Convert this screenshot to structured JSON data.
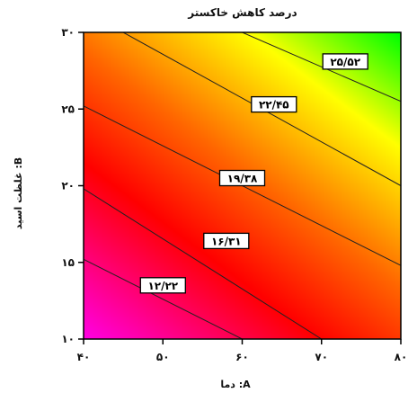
{
  "chart_data": {
    "type": "contour",
    "title": "درصد کاهش خاکستر",
    "xlabel": "A: دما",
    "ylabel": "B: غلظت اسید",
    "xlim": [
      40,
      80
    ],
    "ylim": [
      10,
      30
    ],
    "x_ticks": [
      40,
      50,
      60,
      70,
      80
    ],
    "x_tick_labels": [
      "۴۰",
      "۵۰",
      "۶۰",
      "۷۰",
      "۸۰"
    ],
    "y_ticks": [
      10,
      15,
      20,
      25,
      30
    ],
    "y_tick_labels": [
      "۱۰",
      "۱۵",
      "۲۰",
      "۲۵",
      "۳۰"
    ],
    "colormap": [
      "#ff00ff",
      "#ff0000",
      "#ffff00",
      "#00ff00"
    ],
    "grid": false,
    "contour_levels": [
      {
        "value": 12.22,
        "label": "۱۲/۲۲"
      },
      {
        "value": 16.31,
        "label": "۱۶/۳۱"
      },
      {
        "value": 19.38,
        "label": "۱۹/۳۸"
      },
      {
        "value": 22.45,
        "label": "۲۲/۴۵"
      },
      {
        "value": 25.52,
        "label": "۲۵/۵۲"
      }
    ],
    "contour_lines": [
      {
        "level": 12.22,
        "points": [
          [
            40,
            15.2
          ],
          [
            60,
            10
          ]
        ]
      },
      {
        "level": 16.31,
        "points": [
          [
            40,
            19.8
          ],
          [
            70,
            10
          ]
        ]
      },
      {
        "level": 19.38,
        "points": [
          [
            40,
            25.2
          ],
          [
            80,
            14.8
          ]
        ]
      },
      {
        "level": 22.45,
        "points": [
          [
            45,
            30
          ],
          [
            80,
            20
          ]
        ]
      },
      {
        "level": 25.52,
        "points": [
          [
            60,
            30
          ],
          [
            80,
            25.5
          ]
        ]
      }
    ],
    "contour_label_positions": [
      {
        "level": 12.22,
        "x": 50,
        "y": 13.5
      },
      {
        "level": 16.31,
        "x": 58,
        "y": 16.4
      },
      {
        "level": 19.38,
        "x": 60,
        "y": 20.5
      },
      {
        "level": 22.45,
        "x": 64,
        "y": 25.3
      },
      {
        "level": 25.52,
        "x": 73,
        "y": 28.1
      }
    ]
  }
}
